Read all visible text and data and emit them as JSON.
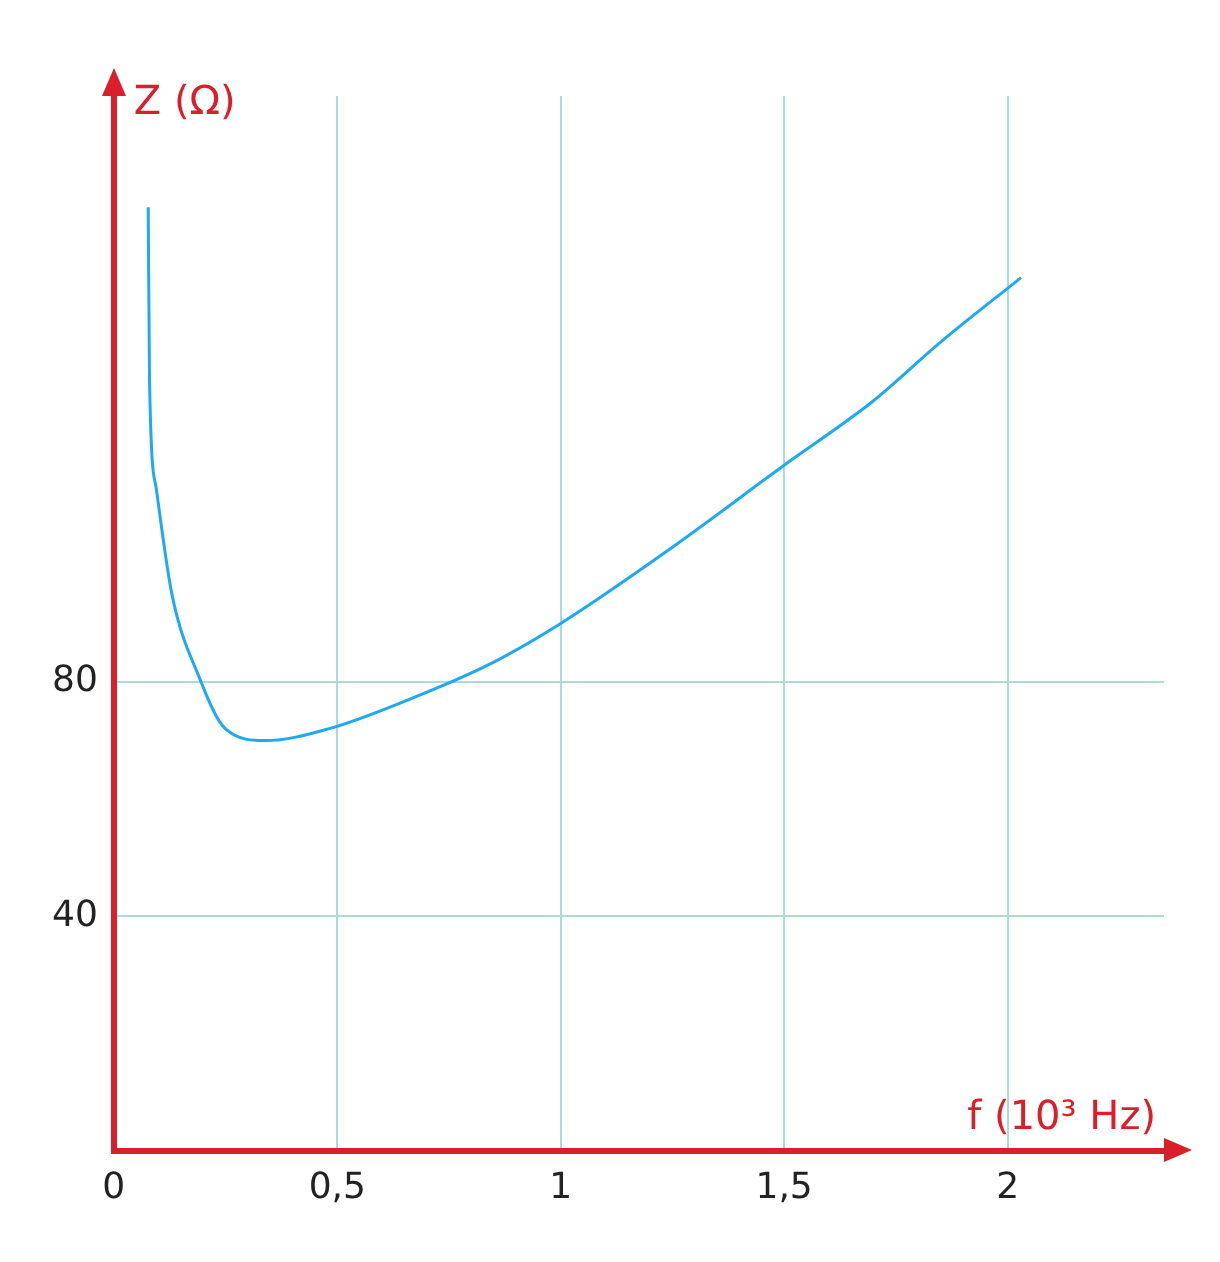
{
  "chart_data": {
    "type": "line",
    "xlabel": "f (10³ Hz)",
    "ylabel": "Z (Ω)",
    "x": [
      0.077,
      0.08,
      0.095,
      0.13,
      0.19,
      0.25,
      0.34,
      0.48,
      0.66,
      0.84,
      1.0,
      1.25,
      1.5,
      1.7,
      1.85,
      2.03
    ],
    "series": [
      {
        "color": "#1eaaf1",
        "values": [
          161,
          131,
          113,
          95,
          81,
          72,
          70,
          72,
          77,
          83,
          90,
          103,
          117,
          128,
          138,
          149
        ]
      }
    ],
    "xlim": [
      0,
      2.35
    ],
    "ylim": [
      0,
      180
    ],
    "xticks": [
      {
        "value": 0,
        "label": "0"
      },
      {
        "value": 0.5,
        "label": "0,5"
      },
      1,
      {
        "value": 1.5,
        "label": "1,5"
      },
      2
    ],
    "yticks": [
      40,
      80
    ],
    "grid": true,
    "marker": "none"
  }
}
